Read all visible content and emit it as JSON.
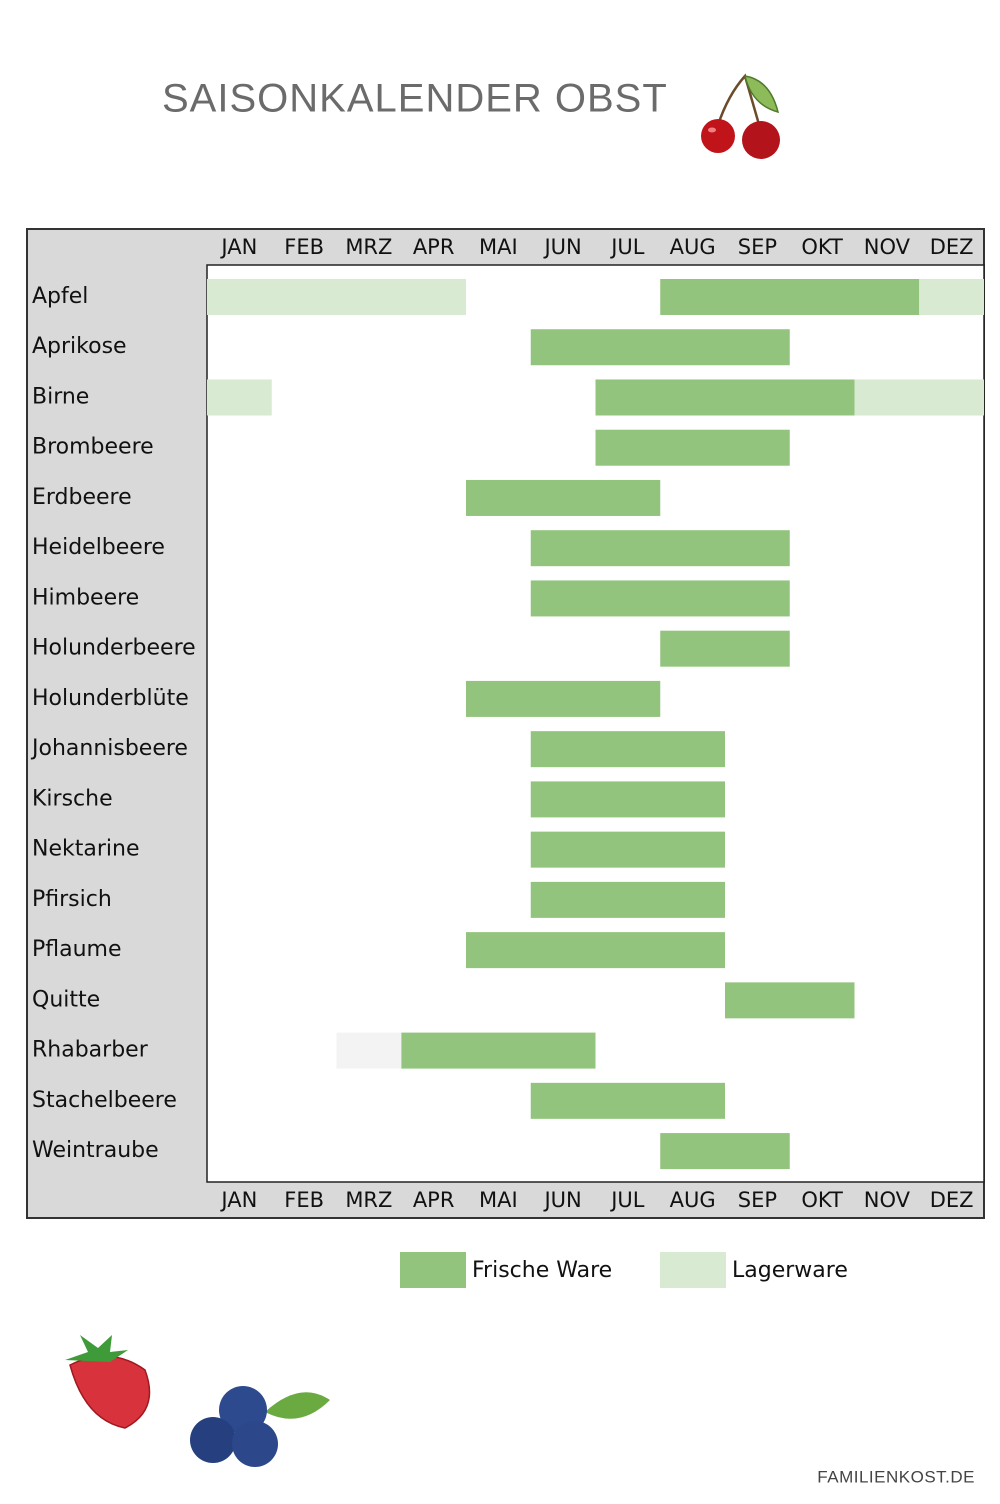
{
  "chart_data": {
    "type": "gantt",
    "title": "SAISONKALENDER OBST",
    "months": [
      "JAN",
      "FEB",
      "MRZ",
      "APR",
      "MAI",
      "JUN",
      "JUL",
      "AUG",
      "SEP",
      "OKT",
      "NOV",
      "DEZ"
    ],
    "categories": [
      "Apfel",
      "Aprikose",
      "Birne",
      "Brombeere",
      "Erdbeere",
      "Heidelbeere",
      "Himbeere",
      "Holunderbeere",
      "Holunderblüte",
      "Johannisbeere",
      "Kirsche",
      "Nektarine",
      "Pfirsich",
      "Pflaume",
      "Quitte",
      "Rhabarber",
      "Stachelbeere",
      "Weintraube"
    ],
    "xlim": [
      0,
      12
    ],
    "series": [
      {
        "name": "Frische Ware",
        "color": "#93c47d",
        "values": [
          [
            [
              7,
              11
            ]
          ],
          [
            [
              5,
              9
            ]
          ],
          [
            [
              6,
              10
            ]
          ],
          [
            [
              6,
              9
            ]
          ],
          [
            [
              4,
              7
            ]
          ],
          [
            [
              5,
              9
            ]
          ],
          [
            [
              5,
              9
            ]
          ],
          [
            [
              7,
              9
            ]
          ],
          [
            [
              4,
              7
            ]
          ],
          [
            [
              5,
              8
            ]
          ],
          [
            [
              5,
              8
            ]
          ],
          [
            [
              5,
              8
            ]
          ],
          [
            [
              5,
              8
            ]
          ],
          [
            [
              4,
              8
            ]
          ],
          [
            [
              8,
              10
            ]
          ],
          [
            [
              3,
              6
            ]
          ],
          [
            [
              5,
              8
            ]
          ],
          [
            [
              7,
              9
            ]
          ]
        ]
      },
      {
        "name": "Lagerware",
        "color": "#d9ead3",
        "values": [
          [
            [
              0,
              4
            ],
            [
              11,
              12
            ]
          ],
          [],
          [
            [
              0,
              1
            ],
            [
              10,
              12
            ]
          ],
          [],
          [],
          [],
          [],
          [],
          [],
          [],
          [],
          [],
          [],
          [],
          [],
          [],
          [],
          []
        ]
      },
      {
        "color": "#f3f3f3",
        "values": [
          [],
          [],
          [],
          [],
          [],
          [],
          [],
          [],
          [],
          [],
          [],
          [],
          [],
          [],
          [],
          [
            [
              2,
              3
            ]
          ],
          [],
          []
        ]
      }
    ],
    "footer": "FAMILIENKOST.DE"
  }
}
